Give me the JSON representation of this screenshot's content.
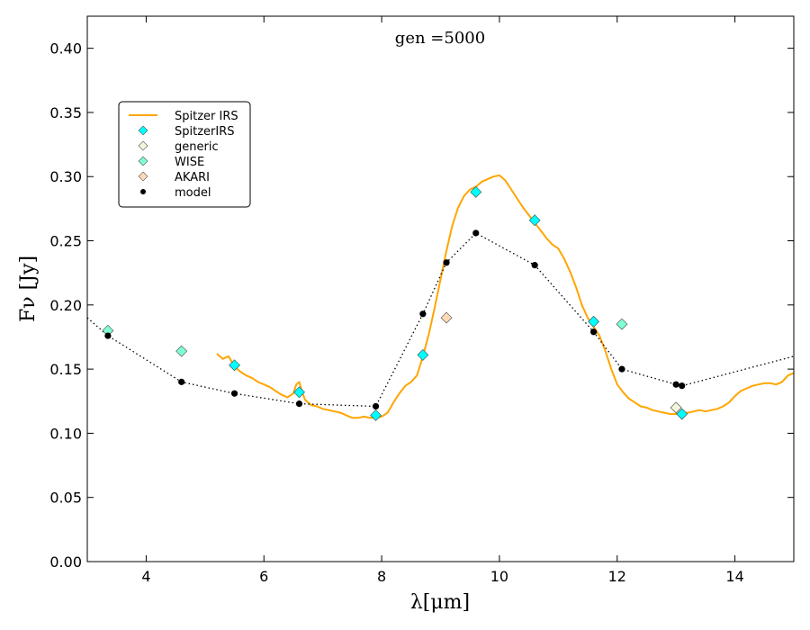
{
  "chart_data": {
    "type": "line",
    "title": "",
    "annotation": "gen =5000",
    "xlabel": "λ[μm]",
    "ylabel": "Fν [Jy]",
    "xlim": [
      3,
      15
    ],
    "ylim": [
      0,
      0.425
    ],
    "xticks": [
      4,
      6,
      8,
      10,
      12,
      14
    ],
    "yticks": [
      0.0,
      0.05,
      0.1,
      0.15,
      0.2,
      0.25,
      0.3,
      0.35,
      0.4
    ],
    "xtick_labels": [
      "4",
      "6",
      "8",
      "10",
      "12",
      "14"
    ],
    "ytick_labels": [
      "0.00",
      "0.05",
      "0.10",
      "0.15",
      "0.20",
      "0.25",
      "0.30",
      "0.35",
      "0.40"
    ],
    "grid": false,
    "legend_position": "upper-left",
    "series": [
      {
        "name": "Spitzer IRS",
        "kind": "line",
        "color": "#ffa500",
        "x": [
          5.2,
          5.3,
          5.4,
          5.5,
          5.6,
          5.7,
          5.8,
          5.9,
          6.0,
          6.1,
          6.2,
          6.3,
          6.4,
          6.5,
          6.55,
          6.6,
          6.65,
          6.7,
          6.8,
          6.9,
          7.0,
          7.1,
          7.2,
          7.3,
          7.4,
          7.5,
          7.6,
          7.7,
          7.8,
          7.9,
          8.0,
          8.1,
          8.2,
          8.3,
          8.4,
          8.5,
          8.6,
          8.7,
          8.8,
          8.9,
          9.0,
          9.1,
          9.2,
          9.3,
          9.4,
          9.5,
          9.6,
          9.7,
          9.8,
          9.9,
          10.0,
          10.1,
          10.2,
          10.3,
          10.4,
          10.5,
          10.6,
          10.7,
          10.8,
          10.9,
          11.0,
          11.1,
          11.2,
          11.3,
          11.4,
          11.5,
          11.6,
          11.7,
          11.8,
          11.9,
          12.0,
          12.1,
          12.2,
          12.3,
          12.4,
          12.5,
          12.6,
          12.7,
          12.8,
          12.9,
          13.0,
          13.1,
          13.2,
          13.3,
          13.4,
          13.5,
          13.6,
          13.7,
          13.8,
          13.9,
          14.0,
          14.1,
          14.2,
          14.3,
          14.4,
          14.5,
          14.6,
          14.7,
          14.8,
          14.9,
          15.0
        ],
        "y": [
          0.162,
          0.158,
          0.16,
          0.152,
          0.148,
          0.145,
          0.143,
          0.14,
          0.138,
          0.136,
          0.133,
          0.13,
          0.128,
          0.131,
          0.138,
          0.14,
          0.132,
          0.126,
          0.122,
          0.121,
          0.119,
          0.118,
          0.117,
          0.116,
          0.114,
          0.112,
          0.112,
          0.113,
          0.112,
          0.112,
          0.113,
          0.116,
          0.124,
          0.131,
          0.137,
          0.14,
          0.145,
          0.16,
          0.177,
          0.198,
          0.22,
          0.242,
          0.262,
          0.276,
          0.285,
          0.29,
          0.292,
          0.296,
          0.298,
          0.3,
          0.301,
          0.297,
          0.29,
          0.283,
          0.276,
          0.27,
          0.264,
          0.258,
          0.252,
          0.247,
          0.244,
          0.236,
          0.226,
          0.214,
          0.2,
          0.19,
          0.183,
          0.176,
          0.164,
          0.15,
          0.138,
          0.132,
          0.127,
          0.124,
          0.121,
          0.12,
          0.118,
          0.117,
          0.116,
          0.115,
          0.115,
          0.116,
          0.116,
          0.117,
          0.118,
          0.117,
          0.118,
          0.119,
          0.121,
          0.124,
          0.129,
          0.133,
          0.135,
          0.137,
          0.138,
          0.139,
          0.139,
          0.138,
          0.14,
          0.145,
          0.147
        ]
      },
      {
        "name": "SpitzerIRS",
        "kind": "marker",
        "marker": "diamond",
        "color": "#00ffff",
        "x": [
          5.5,
          6.6,
          7.9,
          8.7,
          9.6,
          10.6,
          11.6,
          13.1
        ],
        "y": [
          0.153,
          0.132,
          0.114,
          0.161,
          0.288,
          0.266,
          0.187,
          0.115
        ]
      },
      {
        "name": "generic",
        "kind": "marker",
        "marker": "diamond",
        "color": "#f5f5dc",
        "x": [
          13.0
        ],
        "y": [
          0.12
        ]
      },
      {
        "name": "WISE",
        "kind": "marker",
        "marker": "diamond",
        "color": "#7fffd4",
        "x": [
          3.35,
          4.6,
          12.08
        ],
        "y": [
          0.18,
          0.164,
          0.185
        ]
      },
      {
        "name": "AKARI",
        "kind": "marker",
        "marker": "diamond",
        "color": "#ffdab9",
        "x": [
          9.1
        ],
        "y": [
          0.19
        ]
      },
      {
        "name": "model",
        "kind": "marker+dotted-line",
        "marker": "circle",
        "color": "#000000",
        "line_x": [
          3.0,
          3.35,
          4.6,
          5.5,
          6.6,
          7.9,
          8.7,
          9.1,
          9.6,
          10.6,
          11.6,
          12.08,
          13.0,
          13.1,
          15.0
        ],
        "line_y": [
          0.19,
          0.176,
          0.14,
          0.131,
          0.123,
          0.121,
          0.193,
          0.233,
          0.256,
          0.231,
          0.179,
          0.15,
          0.138,
          0.137,
          0.16
        ],
        "x": [
          3.35,
          4.6,
          5.5,
          6.6,
          7.9,
          8.7,
          9.1,
          9.6,
          10.6,
          11.6,
          12.08,
          13.0,
          13.1
        ],
        "y": [
          0.176,
          0.14,
          0.131,
          0.123,
          0.121,
          0.193,
          0.233,
          0.256,
          0.231,
          0.179,
          0.15,
          0.138,
          0.137
        ]
      }
    ]
  }
}
